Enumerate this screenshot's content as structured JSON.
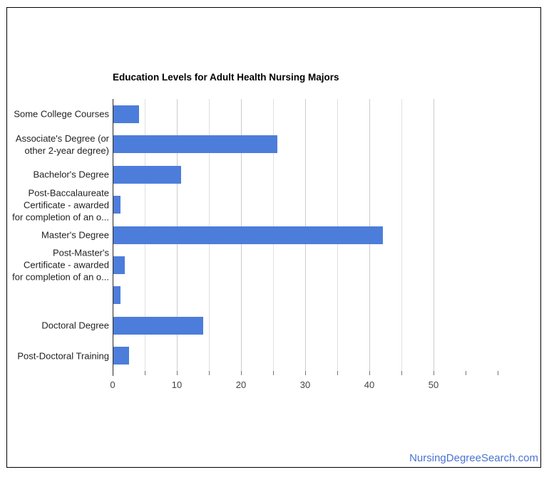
{
  "chart": {
    "title": "Education Levels for Adult Health Nursing Majors"
  },
  "chart_data": {
    "type": "bar",
    "orientation": "horizontal",
    "title": "Education Levels for Adult Health Nursing Majors",
    "categories": [
      "Some College Courses",
      "Associate's Degree (or other 2-year degree)",
      "Bachelor's Degree",
      "Post-Baccalaureate Certificate - awarded for completion of an o...",
      "Master's Degree",
      "Post-Master's Certificate - awarded for completion of an o...",
      "",
      "Doctoral Degree",
      "Post-Doctoral Training"
    ],
    "category_display_lines": [
      [
        "Some College Courses"
      ],
      [
        "Associate's Degree (or",
        "other 2-year degree)"
      ],
      [
        "Bachelor's Degree"
      ],
      [
        "Post-Baccalaureate",
        "Certificate - awarded",
        "for completion of an o..."
      ],
      [
        "Master's Degree"
      ],
      [
        "Post-Master's",
        "Certificate - awarded",
        "for completion of an o..."
      ],
      [
        ""
      ],
      [
        "Doctoral Degree"
      ],
      [
        "Post-Doctoral Training"
      ]
    ],
    "values": [
      4,
      25.5,
      10.6,
      1.1,
      42,
      1.8,
      1.1,
      14,
      2.4
    ],
    "xlabel": "",
    "ylabel": "",
    "xlim": [
      0,
      60
    ],
    "x_tick_labels": [
      0,
      10,
      20,
      30,
      40,
      50
    ],
    "minor_tick_step": 5,
    "grid": "vertical gridlines every 5 units from 0 to 50",
    "legend": "none",
    "colors": {
      "bar": "#4d7dda",
      "gridline_major": "#cccccc",
      "gridline_minor": "#e0e0e0",
      "axis_line": "#2a2a2a",
      "tick": "#777777",
      "axis_text": "#444444",
      "label_text": "#222222",
      "title_text": "#000000"
    }
  },
  "footer": {
    "link_text": "NursingDegreeSearch.com",
    "link_color": "#4a73d2"
  }
}
